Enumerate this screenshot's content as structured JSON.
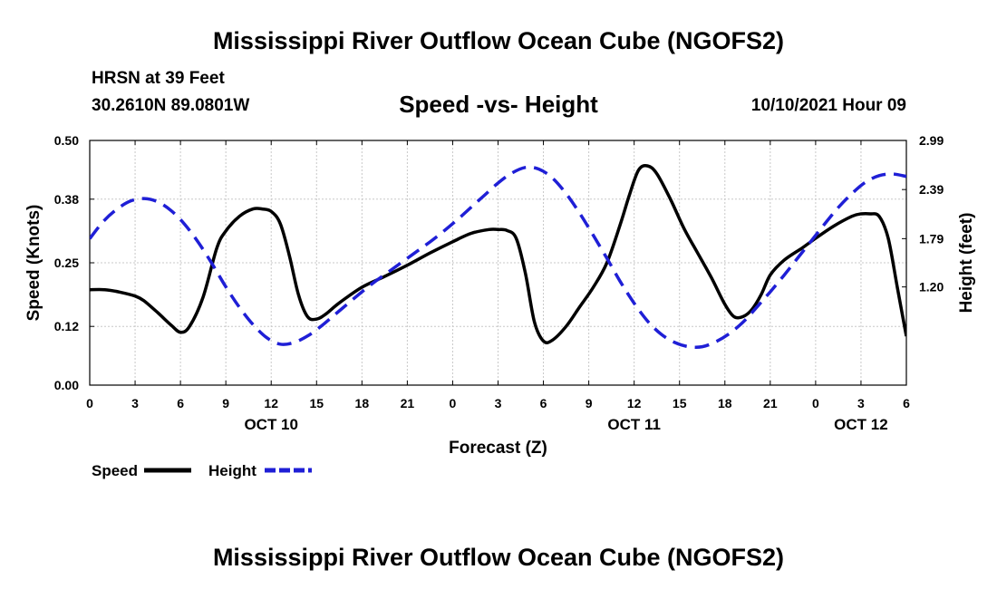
{
  "page": {
    "title_top": "Mississippi River Outflow Ocean Cube (NGOFS2)",
    "title_bottom": "Mississippi River Outflow Ocean Cube (NGOFS2)",
    "station": "HRSN at 39 Feet",
    "coords": "30.2610N  89.0801W",
    "subtitle": "Speed -vs- Height",
    "date": "10/10/2021 Hour 09"
  },
  "chart_data": {
    "type": "line",
    "xlabel": "Forecast (Z)",
    "ylabel": "Speed (Knots)",
    "y2label": "Height (feet)",
    "x_range": [
      0,
      54
    ],
    "x_ticks": [
      0,
      3,
      6,
      9,
      12,
      15,
      18,
      21,
      24,
      27,
      30,
      33,
      36,
      39,
      42,
      45,
      48,
      51,
      54
    ],
    "x_tick_labels": [
      "0",
      "3",
      "6",
      "9",
      "12",
      "15",
      "18",
      "21",
      "0",
      "3",
      "6",
      "9",
      "12",
      "15",
      "18",
      "21",
      "0",
      "3",
      "6"
    ],
    "day_labels": [
      {
        "x": 12,
        "label": "OCT 10"
      },
      {
        "x": 36,
        "label": "OCT 11"
      },
      {
        "x": 51,
        "label": "OCT 12"
      }
    ],
    "ylim": [
      0,
      0.5
    ],
    "y_ticks": [
      0.0,
      0.12,
      0.25,
      0.38,
      0.5
    ],
    "y_tick_labels": [
      "0.00",
      "0.12",
      "0.25",
      "0.38",
      "0.50"
    ],
    "y2lim": [
      0.0,
      2.99
    ],
    "y2_ticks": [
      1.2,
      1.79,
      2.39,
      2.99
    ],
    "y2_tick_labels": [
      "1.20",
      "1.79",
      "2.39",
      "2.99"
    ],
    "grid": true,
    "series": [
      {
        "name": "Speed",
        "axis": "left",
        "color": "#000000",
        "dash": "solid",
        "x": [
          0,
          1,
          2,
          3,
          3.6,
          4.5,
          5.4,
          6,
          6.6,
          7.5,
          8.4,
          9,
          9.9,
          10.8,
          11.4,
          12,
          12.6,
          13.2,
          13.8,
          14.4,
          15,
          15.6,
          16.5,
          18,
          19.5,
          21,
          22.5,
          24,
          25.2,
          26.4,
          27,
          27.6,
          28.2,
          28.8,
          29.4,
          30,
          30.6,
          31.5,
          32.4,
          33.3,
          34.2,
          35.1,
          35.7,
          36.3,
          36.9,
          37.5,
          38.4,
          39.3,
          40.2,
          41.1,
          42,
          42.6,
          43.2,
          43.8,
          44.4,
          45,
          45.9,
          47.1,
          48,
          49.2,
          50.4,
          51,
          51.6,
          52.2,
          52.8,
          53.4,
          54
        ],
        "values": [
          0.195,
          0.195,
          0.19,
          0.182,
          0.172,
          0.148,
          0.122,
          0.108,
          0.12,
          0.18,
          0.28,
          0.315,
          0.345,
          0.36,
          0.36,
          0.355,
          0.33,
          0.265,
          0.185,
          0.14,
          0.135,
          0.145,
          0.168,
          0.2,
          0.222,
          0.245,
          0.27,
          0.293,
          0.31,
          0.318,
          0.318,
          0.316,
          0.3,
          0.23,
          0.13,
          0.09,
          0.092,
          0.12,
          0.16,
          0.2,
          0.25,
          0.33,
          0.39,
          0.44,
          0.448,
          0.432,
          0.38,
          0.32,
          0.27,
          0.22,
          0.165,
          0.14,
          0.14,
          0.155,
          0.185,
          0.225,
          0.255,
          0.28,
          0.3,
          0.325,
          0.345,
          0.35,
          0.35,
          0.345,
          0.3,
          0.2,
          0.1
        ]
      },
      {
        "name": "Height",
        "axis": "right",
        "color": "#1f1fd6",
        "dash": "dashed",
        "x": [
          0,
          0.9,
          1.8,
          2.7,
          3.6,
          4.5,
          5.4,
          6.3,
          7.2,
          8.1,
          9,
          9.9,
          10.8,
          11.7,
          12.6,
          13.5,
          14.4,
          15.3,
          16.2,
          17.1,
          18,
          18.9,
          19.8,
          20.7,
          21.6,
          22.5,
          23.4,
          24.3,
          25.2,
          26.1,
          27,
          27.9,
          28.8,
          29.7,
          30.6,
          31.5,
          32.4,
          33.3,
          34.2,
          35.1,
          36,
          36.9,
          37.8,
          38.7,
          39.6,
          40.5,
          41.4,
          42.3,
          43.2,
          44.1,
          45,
          45.9,
          46.8,
          47.7,
          48.6,
          49.5,
          50.4,
          51.3,
          52.2,
          53.1,
          54
        ],
        "values": [
          1.79,
          2.0,
          2.15,
          2.25,
          2.28,
          2.24,
          2.13,
          1.96,
          1.74,
          1.48,
          1.2,
          0.95,
          0.74,
          0.58,
          0.5,
          0.52,
          0.6,
          0.72,
          0.86,
          1.0,
          1.14,
          1.27,
          1.39,
          1.51,
          1.63,
          1.75,
          1.88,
          2.02,
          2.17,
          2.32,
          2.47,
          2.59,
          2.66,
          2.64,
          2.53,
          2.34,
          2.1,
          1.83,
          1.55,
          1.26,
          1.0,
          0.78,
          0.62,
          0.52,
          0.47,
          0.47,
          0.53,
          0.63,
          0.77,
          0.95,
          1.14,
          1.34,
          1.55,
          1.76,
          1.97,
          2.17,
          2.34,
          2.48,
          2.56,
          2.58,
          2.55
        ]
      }
    ],
    "legend": [
      {
        "label": "Speed",
        "color": "#000000",
        "dash": "solid"
      },
      {
        "label": "Height",
        "color": "#1f1fd6",
        "dash": "dashed"
      }
    ]
  }
}
